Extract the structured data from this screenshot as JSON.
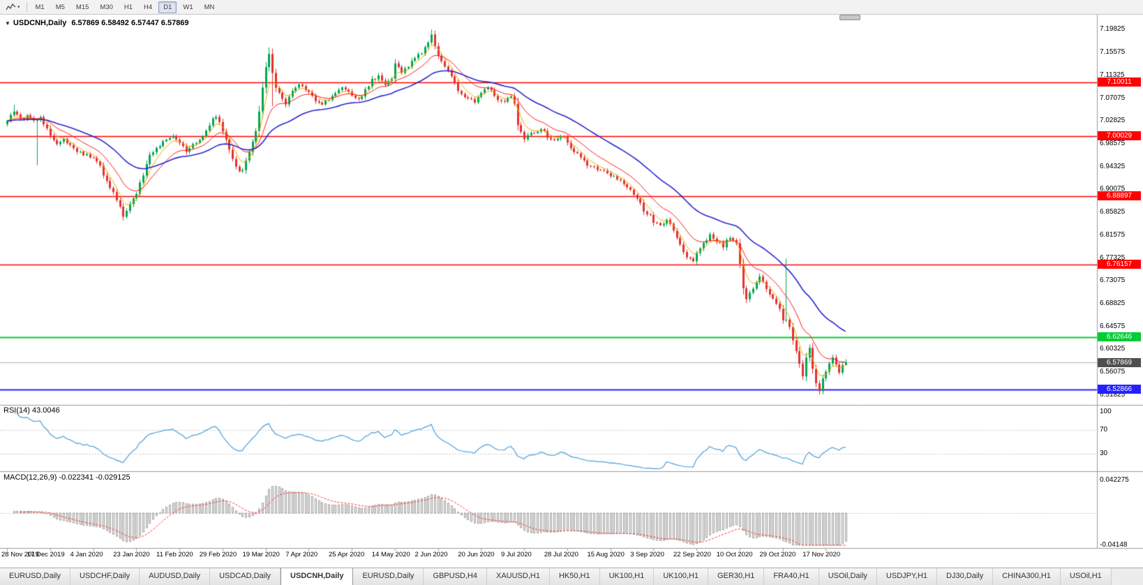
{
  "colors": {
    "up_candle": "#00a651",
    "down_candle": "#e53030",
    "ma_fast": "#f2a900",
    "ma_mid": "#ff1a1a",
    "ma_slow": "#2727cc",
    "rsi_line": "#4a9fdc",
    "rsi_levels": "#c8c8c8",
    "macd_hist": "#9a9a9a",
    "macd_signal": "#ff3333",
    "bid_line": "#b4b4b4",
    "current_badge": "#4f4f4f",
    "separator": "#9a9a9a",
    "axis_text": "#000000"
  },
  "toolbar": {
    "tools_icon": "chart-tools",
    "dropdown_icon": "▾",
    "timeframes": [
      "M1",
      "M5",
      "M15",
      "M30",
      "H1",
      "H4",
      "D1",
      "W1",
      "MN"
    ],
    "active_timeframe": "D1"
  },
  "chart": {
    "collapse_icon": "▼",
    "title": {
      "symbol": "USDCNH,Daily",
      "open": "6.57869",
      "high": "6.58492",
      "low": "6.57447",
      "close": "6.57869",
      "ohlc_text": "6.57869 6.58492 6.57447 6.57869"
    }
  },
  "chart_data": {
    "type": "candlestick",
    "symbol": "USDCNH",
    "timeframe": "Daily",
    "candles_count": 254,
    "y_range": [
      6.5,
      7.2195
    ],
    "y_axis_labels": [
      "7.19825",
      "7.15575",
      "7.11325",
      "7.07075",
      "7.02825",
      "6.98575",
      "6.94325",
      "6.90075",
      "6.85825",
      "6.81575",
      "6.77325",
      "6.73075",
      "6.68825",
      "6.64575",
      "6.60325",
      "6.56075",
      "6.51825"
    ],
    "x_labels": [
      {
        "t": "28 Nov 2019",
        "i": 0
      },
      {
        "t": "17 Dec 2019",
        "i": 13
      },
      {
        "t": "4 Jan 2020",
        "i": 26
      },
      {
        "t": "23 Jan 2020",
        "i": 39
      },
      {
        "t": "11 Feb 2020",
        "i": 52
      },
      {
        "t": "29 Feb 2020",
        "i": 65
      },
      {
        "t": "19 Mar 2020",
        "i": 78
      },
      {
        "t": "7 Apr 2020",
        "i": 91
      },
      {
        "t": "25 Apr 2020",
        "i": 104
      },
      {
        "t": "14 May 2020",
        "i": 117
      },
      {
        "t": "2 Jun 2020",
        "i": 130
      },
      {
        "t": "20 Jun 2020",
        "i": 143
      },
      {
        "t": "9 Jul 2020",
        "i": 156
      },
      {
        "t": "28 Jul 2020",
        "i": 169
      },
      {
        "t": "15 Aug 2020",
        "i": 182
      },
      {
        "t": "3 Sep 2020",
        "i": 195
      },
      {
        "t": "22 Sep 2020",
        "i": 208
      },
      {
        "t": "10 Oct 2020",
        "i": 221
      },
      {
        "t": "29 Oct 2020",
        "i": 234
      },
      {
        "t": "17 Nov 2020",
        "i": 247
      }
    ],
    "close_anchors": [
      [
        0,
        7.028
      ],
      [
        1,
        7.036
      ],
      [
        2,
        7.044
      ],
      [
        4,
        7.03
      ],
      [
        6,
        7.038
      ],
      [
        8,
        7.028
      ],
      [
        10,
        7.034
      ],
      [
        12,
        7.014
      ],
      [
        13,
        7.002
      ],
      [
        15,
        6.988
      ],
      [
        17,
        6.996
      ],
      [
        19,
        6.984
      ],
      [
        21,
        6.974
      ],
      [
        23,
        6.966
      ],
      [
        26,
        6.96
      ],
      [
        28,
        6.942
      ],
      [
        31,
        6.906
      ],
      [
        33,
        6.88
      ],
      [
        35,
        6.852
      ],
      [
        37,
        6.872
      ],
      [
        39,
        6.892
      ],
      [
        41,
        6.93
      ],
      [
        43,
        6.962
      ],
      [
        45,
        6.978
      ],
      [
        48,
        6.992
      ],
      [
        50,
        7.002
      ],
      [
        52,
        6.988
      ],
      [
        54,
        6.974
      ],
      [
        56,
        6.982
      ],
      [
        58,
        6.992
      ],
      [
        60,
        7.012
      ],
      [
        62,
        7.03
      ],
      [
        63,
        7.038
      ],
      [
        65,
        7.012
      ],
      [
        67,
        6.972
      ],
      [
        69,
        6.944
      ],
      [
        70,
        6.932
      ],
      [
        71,
        6.938
      ],
      [
        73,
        6.972
      ],
      [
        75,
        7.01
      ],
      [
        76,
        7.048
      ],
      [
        77,
        7.092
      ],
      [
        78,
        7.128
      ],
      [
        79,
        7.15
      ],
      [
        80,
        7.118
      ],
      [
        81,
        7.092
      ],
      [
        82,
        7.078
      ],
      [
        84,
        7.062
      ],
      [
        86,
        7.082
      ],
      [
        88,
        7.096
      ],
      [
        91,
        7.079
      ],
      [
        93,
        7.068
      ],
      [
        95,
        7.058
      ],
      [
        97,
        7.07
      ],
      [
        99,
        7.082
      ],
      [
        101,
        7.088
      ],
      [
        104,
        7.076
      ],
      [
        106,
        7.066
      ],
      [
        108,
        7.088
      ],
      [
        110,
        7.104
      ],
      [
        112,
        7.112
      ],
      [
        114,
        7.096
      ],
      [
        116,
        7.106
      ],
      [
        117,
        7.132
      ],
      [
        119,
        7.118
      ],
      [
        121,
        7.132
      ],
      [
        123,
        7.146
      ],
      [
        125,
        7.156
      ],
      [
        127,
        7.176
      ],
      [
        128,
        7.192
      ],
      [
        129,
        7.166
      ],
      [
        130,
        7.152
      ],
      [
        132,
        7.13
      ],
      [
        134,
        7.108
      ],
      [
        136,
        7.084
      ],
      [
        138,
        7.072
      ],
      [
        140,
        7.066
      ],
      [
        141,
        7.06
      ],
      [
        143,
        7.082
      ],
      [
        145,
        7.09
      ],
      [
        147,
        7.076
      ],
      [
        149,
        7.062
      ],
      [
        151,
        7.068
      ],
      [
        152,
        7.074
      ],
      [
        153,
        7.06
      ],
      [
        154,
        7.022
      ],
      [
        155,
        7.006
      ],
      [
        156,
        6.996
      ],
      [
        158,
        7.006
      ],
      [
        161,
        7.014
      ],
      [
        164,
        6.992
      ],
      [
        167,
        7.002
      ],
      [
        169,
        6.988
      ],
      [
        172,
        6.966
      ],
      [
        175,
        6.948
      ],
      [
        178,
        6.94
      ],
      [
        182,
        6.928
      ],
      [
        185,
        6.916
      ],
      [
        188,
        6.902
      ],
      [
        190,
        6.886
      ],
      [
        192,
        6.862
      ],
      [
        194,
        6.85
      ],
      [
        195,
        6.842
      ],
      [
        197,
        6.834
      ],
      [
        199,
        6.842
      ],
      [
        201,
        6.826
      ],
      [
        203,
        6.796
      ],
      [
        205,
        6.776
      ],
      [
        207,
        6.766
      ],
      [
        208,
        6.786
      ],
      [
        210,
        6.803
      ],
      [
        212,
        6.814
      ],
      [
        214,
        6.806
      ],
      [
        216,
        6.796
      ],
      [
        218,
        6.812
      ],
      [
        220,
        6.802
      ],
      [
        221,
        6.76
      ],
      [
        222,
        6.716
      ],
      [
        223,
        6.698
      ],
      [
        225,
        6.718
      ],
      [
        227,
        6.738
      ],
      [
        229,
        6.716
      ],
      [
        231,
        6.7
      ],
      [
        233,
        6.676
      ],
      [
        234,
        6.66
      ],
      [
        235,
        6.655
      ],
      [
        236,
        6.642
      ],
      [
        237,
        6.62
      ],
      [
        238,
        6.6
      ],
      [
        239,
        6.576
      ],
      [
        240,
        6.556
      ],
      [
        241,
        6.59
      ],
      [
        242,
        6.604
      ],
      [
        243,
        6.566
      ],
      [
        244,
        6.542
      ],
      [
        245,
        6.528
      ],
      [
        246,
        6.548
      ],
      [
        247,
        6.562
      ],
      [
        248,
        6.578
      ],
      [
        249,
        6.588
      ],
      [
        250,
        6.572
      ],
      [
        251,
        6.56
      ],
      [
        252,
        6.574
      ],
      [
        253,
        6.5787
      ]
    ],
    "wick_overrides": {
      "2": {
        "h": 7.058
      },
      "9": {
        "l": 6.946
      },
      "79": {
        "h": 7.165
      },
      "80": {
        "l": 7.056
      },
      "128": {
        "h": 7.1982
      },
      "235": {
        "h": 6.7725
      },
      "245": {
        "l": 6.5192
      },
      "253": {
        "h": 6.58492,
        "l": 6.57447
      }
    },
    "levels": [
      {
        "label": "7.10011",
        "price": 7.10011,
        "color": "#ff0000",
        "width": 1.6
      },
      {
        "label": "7.00029",
        "price": 7.00029,
        "color": "#ff0000",
        "width": 1.6
      },
      {
        "label": "6.88897",
        "price": 6.88897,
        "color": "#ff0000",
        "width": 1.6
      },
      {
        "label": "6.76157",
        "price": 6.76157,
        "color": "#ff0000",
        "width": 1.6
      },
      {
        "label": "6.62646",
        "price": 6.62646,
        "color": "#00cc33",
        "width": 2
      },
      {
        "label": "6.52866",
        "price": 6.52866,
        "color": "#2222ff",
        "width": 2
      }
    ],
    "current_price": {
      "label": "6.57869",
      "price": 6.57869
    },
    "moving_averages": [
      {
        "name": "fast",
        "period": 5,
        "color": "#f2a900"
      },
      {
        "name": "medium",
        "period": 13,
        "color": "#ff1a1a"
      },
      {
        "name": "slow",
        "period": 34,
        "color": "#2727cc"
      }
    ],
    "indicators": [
      {
        "name": "RSI",
        "period": 14,
        "label": "RSI(14) 43.0046",
        "value": "43.0046",
        "type": "line",
        "levels": [
          70,
          30
        ],
        "axis_labels": [
          "100",
          "70",
          "30"
        ],
        "range": [
          0,
          100
        ]
      },
      {
        "name": "MACD",
        "params": [
          12,
          26,
          9
        ],
        "label": "MACD(12,26,9) -0.022341 -0.029125",
        "values": [
          "-0.022341",
          "-0.029125"
        ],
        "type": "histogram+signal",
        "axis_labels": [
          "0.042275",
          "-0.04148"
        ],
        "range": [
          -0.04148,
          0.042275
        ]
      }
    ]
  },
  "tabs": {
    "active_index": 4,
    "items": [
      "EURUSD,Daily",
      "USDCHF,Daily",
      "AUDUSD,Daily",
      "USDCAD,Daily",
      "USDCNH,Daily",
      "EURUSD,Daily",
      "GBPUSD,H4",
      "XAUUSD,H1",
      "HK50,H1",
      "UK100,H1",
      "UK100,H1",
      "GER30,H1",
      "FRA40,H1",
      "USOil,Daily",
      "USDJPY,H1",
      "DJ30,Daily",
      "CHINA300,H1",
      "USOil,H1"
    ]
  }
}
